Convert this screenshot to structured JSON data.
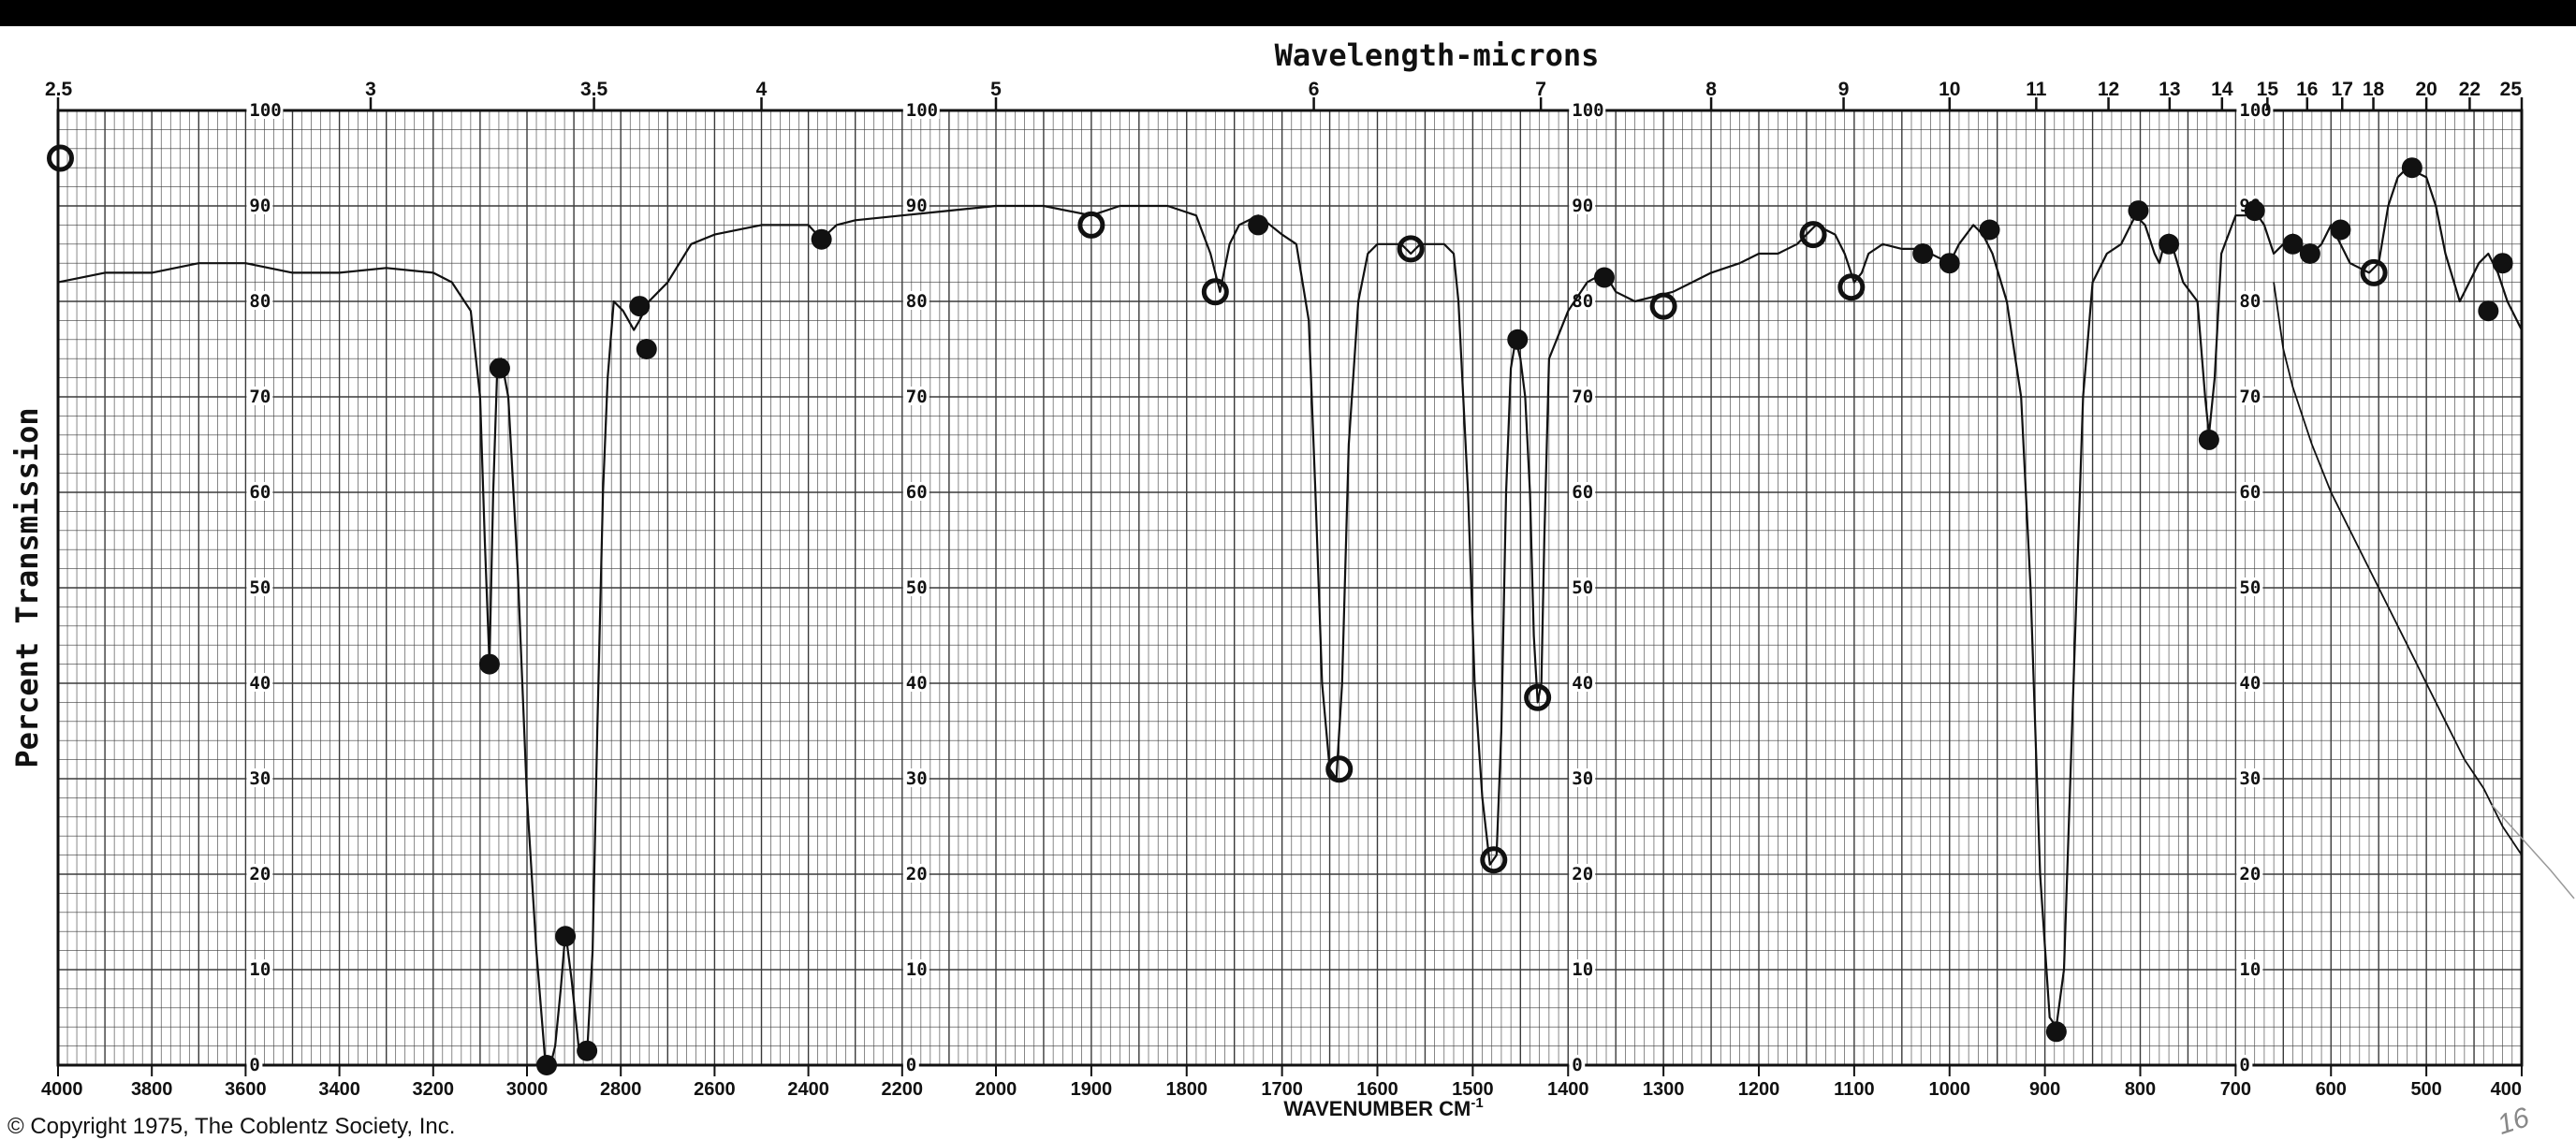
{
  "chart_data": {
    "type": "line",
    "title": "",
    "top_axis_title": "Wavelength-microns",
    "ylabel": "Percent Transmission",
    "xlabel": "WAVENUMBER CM",
    "xlabel_superscript": "-1",
    "x_scale": "dual-linear (4000–2000 and 2000–400 cm-1 segments)",
    "xlim": [
      4000,
      400
    ],
    "ylim": [
      0,
      100
    ],
    "grid": true,
    "bottom_ticks": [
      {
        "v": 4000,
        "t": "4000"
      },
      {
        "v": 3800,
        "t": "3800"
      },
      {
        "v": 3600,
        "t": "3600"
      },
      {
        "v": 3400,
        "t": "3400"
      },
      {
        "v": 3200,
        "t": "3200"
      },
      {
        "v": 3000,
        "t": "3000"
      },
      {
        "v": 2800,
        "t": "2800"
      },
      {
        "v": 2600,
        "t": "2600"
      },
      {
        "v": 2400,
        "t": "2400"
      },
      {
        "v": 2200,
        "t": "2200"
      },
      {
        "v": 2000,
        "t": "2000"
      },
      {
        "v": 1900,
        "t": "1900"
      },
      {
        "v": 1800,
        "t": "1800"
      },
      {
        "v": 1700,
        "t": "1700"
      },
      {
        "v": 1600,
        "t": "1600"
      },
      {
        "v": 1500,
        "t": "1500"
      },
      {
        "v": 1400,
        "t": "1400"
      },
      {
        "v": 1300,
        "t": "1300"
      },
      {
        "v": 1200,
        "t": "1200"
      },
      {
        "v": 1100,
        "t": "1100"
      },
      {
        "v": 1000,
        "t": "1000"
      },
      {
        "v": 900,
        "t": "900"
      },
      {
        "v": 800,
        "t": "800"
      },
      {
        "v": 700,
        "t": "700"
      },
      {
        "v": 600,
        "t": "600"
      },
      {
        "v": 500,
        "t": "500"
      },
      {
        "v": 400,
        "t": "400"
      }
    ],
    "top_ticks": [
      {
        "um": 2.5,
        "t": "2.5"
      },
      {
        "um": 3,
        "t": "3"
      },
      {
        "um": 3.5,
        "t": "3.5"
      },
      {
        "um": 4,
        "t": "4"
      },
      {
        "um": 5,
        "t": "5"
      },
      {
        "um": 6,
        "t": "6"
      },
      {
        "um": 7,
        "t": "7"
      },
      {
        "um": 8,
        "t": "8"
      },
      {
        "um": 9,
        "t": "9"
      },
      {
        "um": 10,
        "t": "10"
      },
      {
        "um": 11,
        "t": "11"
      },
      {
        "um": 12,
        "t": "12"
      },
      {
        "um": 13,
        "t": "13"
      },
      {
        "um": 14,
        "t": "14"
      },
      {
        "um": 15,
        "t": "15"
      },
      {
        "um": 16,
        "t": "16"
      },
      {
        "um": 17,
        "t": "17"
      },
      {
        "um": 18,
        "t": "18"
      },
      {
        "um": 20,
        "t": "20"
      },
      {
        "um": 22,
        "t": "22"
      },
      {
        "um": 25,
        "t": "25"
      }
    ],
    "y_ticks": [
      {
        "v": 0,
        "t": "0"
      },
      {
        "v": 10,
        "t": "10"
      },
      {
        "v": 20,
        "t": "20"
      },
      {
        "v": 30,
        "t": "30"
      },
      {
        "v": 40,
        "t": "40"
      },
      {
        "v": 50,
        "t": "50"
      },
      {
        "v": 60,
        "t": "60"
      },
      {
        "v": 70,
        "t": "70"
      },
      {
        "v": 80,
        "t": "80"
      },
      {
        "v": 90,
        "t": "90"
      },
      {
        "v": 100,
        "t": "100"
      }
    ],
    "y_label_columns_cm1": [
      3600,
      2200,
      1400,
      700
    ],
    "series": [
      {
        "points": [
          [
            4000,
            82
          ],
          [
            3900,
            83
          ],
          [
            3800,
            83
          ],
          [
            3700,
            84
          ],
          [
            3600,
            84
          ],
          [
            3500,
            83
          ],
          [
            3400,
            83
          ],
          [
            3300,
            83.5
          ],
          [
            3200,
            83
          ],
          [
            3160,
            82
          ],
          [
            3120,
            79
          ],
          [
            3100,
            70
          ],
          [
            3090,
            55
          ],
          [
            3080,
            42
          ],
          [
            3072,
            60
          ],
          [
            3064,
            72
          ],
          [
            3055,
            74
          ],
          [
            3040,
            70
          ],
          [
            3020,
            52
          ],
          [
            3000,
            28
          ],
          [
            2980,
            12
          ],
          [
            2962,
            1
          ],
          [
            2950,
            0
          ],
          [
            2940,
            2
          ],
          [
            2928,
            8
          ],
          [
            2918,
            14
          ],
          [
            2905,
            9
          ],
          [
            2890,
            2
          ],
          [
            2872,
            1
          ],
          [
            2860,
            12
          ],
          [
            2850,
            35
          ],
          [
            2838,
            60
          ],
          [
            2828,
            72
          ],
          [
            2815,
            80
          ],
          [
            2795,
            79
          ],
          [
            2772,
            77
          ],
          [
            2760,
            78
          ],
          [
            2740,
            80
          ],
          [
            2720,
            81
          ],
          [
            2700,
            82
          ],
          [
            2650,
            86
          ],
          [
            2600,
            87
          ],
          [
            2500,
            88
          ],
          [
            2400,
            88
          ],
          [
            2372,
            86.5
          ],
          [
            2340,
            88
          ],
          [
            2300,
            88.5
          ],
          [
            2200,
            89
          ],
          [
            2100,
            89.5
          ],
          [
            2000,
            90
          ],
          [
            1950,
            90
          ],
          [
            1900,
            89
          ],
          [
            1870,
            90
          ],
          [
            1820,
            90
          ],
          [
            1790,
            89
          ],
          [
            1775,
            85
          ],
          [
            1765,
            81
          ],
          [
            1755,
            86
          ],
          [
            1745,
            88
          ],
          [
            1725,
            89
          ],
          [
            1700,
            87
          ],
          [
            1685,
            86
          ],
          [
            1672,
            78
          ],
          [
            1665,
            60
          ],
          [
            1658,
            40
          ],
          [
            1650,
            31
          ],
          [
            1643,
            30
          ],
          [
            1637,
            40
          ],
          [
            1630,
            65
          ],
          [
            1620,
            80
          ],
          [
            1610,
            85
          ],
          [
            1600,
            86
          ],
          [
            1590,
            86
          ],
          [
            1575,
            86
          ],
          [
            1565,
            85
          ],
          [
            1555,
            86
          ],
          [
            1545,
            86
          ],
          [
            1530,
            86
          ],
          [
            1520,
            85
          ],
          [
            1515,
            80
          ],
          [
            1505,
            60
          ],
          [
            1498,
            40
          ],
          [
            1490,
            28
          ],
          [
            1482,
            21
          ],
          [
            1475,
            22
          ],
          [
            1470,
            35
          ],
          [
            1465,
            60
          ],
          [
            1460,
            73
          ],
          [
            1455,
            76
          ],
          [
            1450,
            74
          ],
          [
            1445,
            70
          ],
          [
            1440,
            60
          ],
          [
            1436,
            45
          ],
          [
            1432,
            38
          ],
          [
            1428,
            40
          ],
          [
            1425,
            55
          ],
          [
            1420,
            74
          ],
          [
            1400,
            79
          ],
          [
            1380,
            82
          ],
          [
            1362,
            83
          ],
          [
            1350,
            81
          ],
          [
            1330,
            80
          ],
          [
            1310,
            80.5
          ],
          [
            1290,
            81
          ],
          [
            1270,
            82
          ],
          [
            1250,
            83
          ],
          [
            1220,
            84
          ],
          [
            1200,
            85
          ],
          [
            1180,
            85
          ],
          [
            1160,
            86
          ],
          [
            1140,
            88
          ],
          [
            1120,
            87
          ],
          [
            1110,
            85
          ],
          [
            1100,
            82
          ],
          [
            1092,
            83
          ],
          [
            1085,
            85
          ],
          [
            1070,
            86
          ],
          [
            1050,
            85.5
          ],
          [
            1035,
            85.5
          ],
          [
            1020,
            85
          ],
          [
            1000,
            84
          ],
          [
            990,
            86
          ],
          [
            975,
            88
          ],
          [
            965,
            87
          ],
          [
            955,
            85
          ],
          [
            940,
            80
          ],
          [
            925,
            70
          ],
          [
            915,
            50
          ],
          [
            905,
            20
          ],
          [
            895,
            5
          ],
          [
            888,
            4
          ],
          [
            880,
            10
          ],
          [
            870,
            40
          ],
          [
            860,
            70
          ],
          [
            850,
            82
          ],
          [
            835,
            85
          ],
          [
            820,
            86
          ],
          [
            810,
            88
          ],
          [
            805,
            89
          ],
          [
            795,
            88
          ],
          [
            785,
            85
          ],
          [
            780,
            84
          ],
          [
            775,
            86
          ],
          [
            770,
            87
          ],
          [
            755,
            82
          ],
          [
            740,
            80
          ],
          [
            732,
            70
          ],
          [
            728,
            66
          ],
          [
            722,
            72
          ],
          [
            715,
            85
          ],
          [
            700,
            89
          ],
          [
            690,
            89
          ],
          [
            680,
            89.5
          ],
          [
            670,
            88
          ],
          [
            660,
            85
          ],
          [
            650,
            86
          ],
          [
            640,
            87
          ],
          [
            630,
            85
          ],
          [
            620,
            85
          ],
          [
            610,
            86
          ],
          [
            600,
            88
          ],
          [
            590,
            86
          ],
          [
            580,
            84
          ],
          [
            560,
            83
          ],
          [
            550,
            84
          ],
          [
            545,
            87
          ],
          [
            540,
            90
          ],
          [
            530,
            93
          ],
          [
            520,
            94
          ],
          [
            510,
            93.5
          ],
          [
            500,
            93
          ],
          [
            490,
            90
          ],
          [
            480,
            85
          ],
          [
            465,
            80
          ],
          [
            455,
            82
          ],
          [
            445,
            84
          ],
          [
            435,
            85
          ],
          [
            425,
            83
          ],
          [
            415,
            80
          ],
          [
            405,
            78
          ],
          [
            400,
            77
          ]
        ]
      }
    ],
    "secondary_trace": {
      "points": [
        [
          660,
          82
        ],
        [
          650,
          75
        ],
        [
          640,
          71
        ],
        [
          630,
          68
        ],
        [
          620,
          65
        ],
        [
          600,
          60
        ],
        [
          580,
          56
        ],
        [
          560,
          52
        ],
        [
          540,
          48
        ],
        [
          520,
          44
        ],
        [
          500,
          40
        ],
        [
          480,
          36
        ],
        [
          460,
          32
        ],
        [
          440,
          29
        ],
        [
          420,
          25
        ],
        [
          400,
          22
        ]
      ]
    },
    "markers": [
      {
        "x": 3995,
        "y": 95,
        "shape": "ring"
      },
      {
        "x": 3080,
        "y": 42,
        "shape": "dot"
      },
      {
        "x": 3058,
        "y": 73,
        "shape": "dot"
      },
      {
        "x": 2958,
        "y": 0,
        "shape": "dot"
      },
      {
        "x": 2918,
        "y": 13.5,
        "shape": "dot"
      },
      {
        "x": 2872,
        "y": 1.5,
        "shape": "dot"
      },
      {
        "x": 2760,
        "y": 79.5,
        "shape": "dot"
      },
      {
        "x": 2745,
        "y": 75,
        "shape": "dot"
      },
      {
        "x": 2372,
        "y": 86.5,
        "shape": "dot"
      },
      {
        "x": 1900,
        "y": 88,
        "shape": "ring"
      },
      {
        "x": 1770,
        "y": 81,
        "shape": "ring"
      },
      {
        "x": 1725,
        "y": 88,
        "shape": "dot"
      },
      {
        "x": 1640,
        "y": 31,
        "shape": "ring"
      },
      {
        "x": 1565,
        "y": 85.5,
        "shape": "ring"
      },
      {
        "x": 1478,
        "y": 21.5,
        "shape": "ring"
      },
      {
        "x": 1453,
        "y": 76,
        "shape": "dot"
      },
      {
        "x": 1432,
        "y": 38.5,
        "shape": "ring"
      },
      {
        "x": 1362,
        "y": 82.5,
        "shape": "dot"
      },
      {
        "x": 1300,
        "y": 79.5,
        "shape": "ring"
      },
      {
        "x": 1143,
        "y": 87,
        "shape": "ring"
      },
      {
        "x": 1103,
        "y": 81.5,
        "shape": "ring"
      },
      {
        "x": 1028,
        "y": 85,
        "shape": "dot"
      },
      {
        "x": 1000,
        "y": 84,
        "shape": "dot"
      },
      {
        "x": 958,
        "y": 87.5,
        "shape": "dot"
      },
      {
        "x": 888,
        "y": 3.5,
        "shape": "dot"
      },
      {
        "x": 802,
        "y": 89.5,
        "shape": "dot"
      },
      {
        "x": 770,
        "y": 86,
        "shape": "dot"
      },
      {
        "x": 728,
        "y": 65.5,
        "shape": "dot"
      },
      {
        "x": 680,
        "y": 89.5,
        "shape": "dot"
      },
      {
        "x": 640,
        "y": 86,
        "shape": "dot"
      },
      {
        "x": 622,
        "y": 85,
        "shape": "dot"
      },
      {
        "x": 590,
        "y": 87.5,
        "shape": "dot"
      },
      {
        "x": 555,
        "y": 83,
        "shape": "ring"
      },
      {
        "x": 515,
        "y": 94,
        "shape": "dot"
      },
      {
        "x": 435,
        "y": 79,
        "shape": "dot"
      },
      {
        "x": 420,
        "y": 84,
        "shape": "dot"
      }
    ]
  },
  "footer": {
    "copyright": "© Copyright 1975, The Coblentz Society, Inc.",
    "corner_annotation": "16"
  },
  "colors": {
    "grid": "#3a3a3a",
    "trace": "#111111",
    "paper": "#ffffff",
    "top_bar": "#000000"
  }
}
